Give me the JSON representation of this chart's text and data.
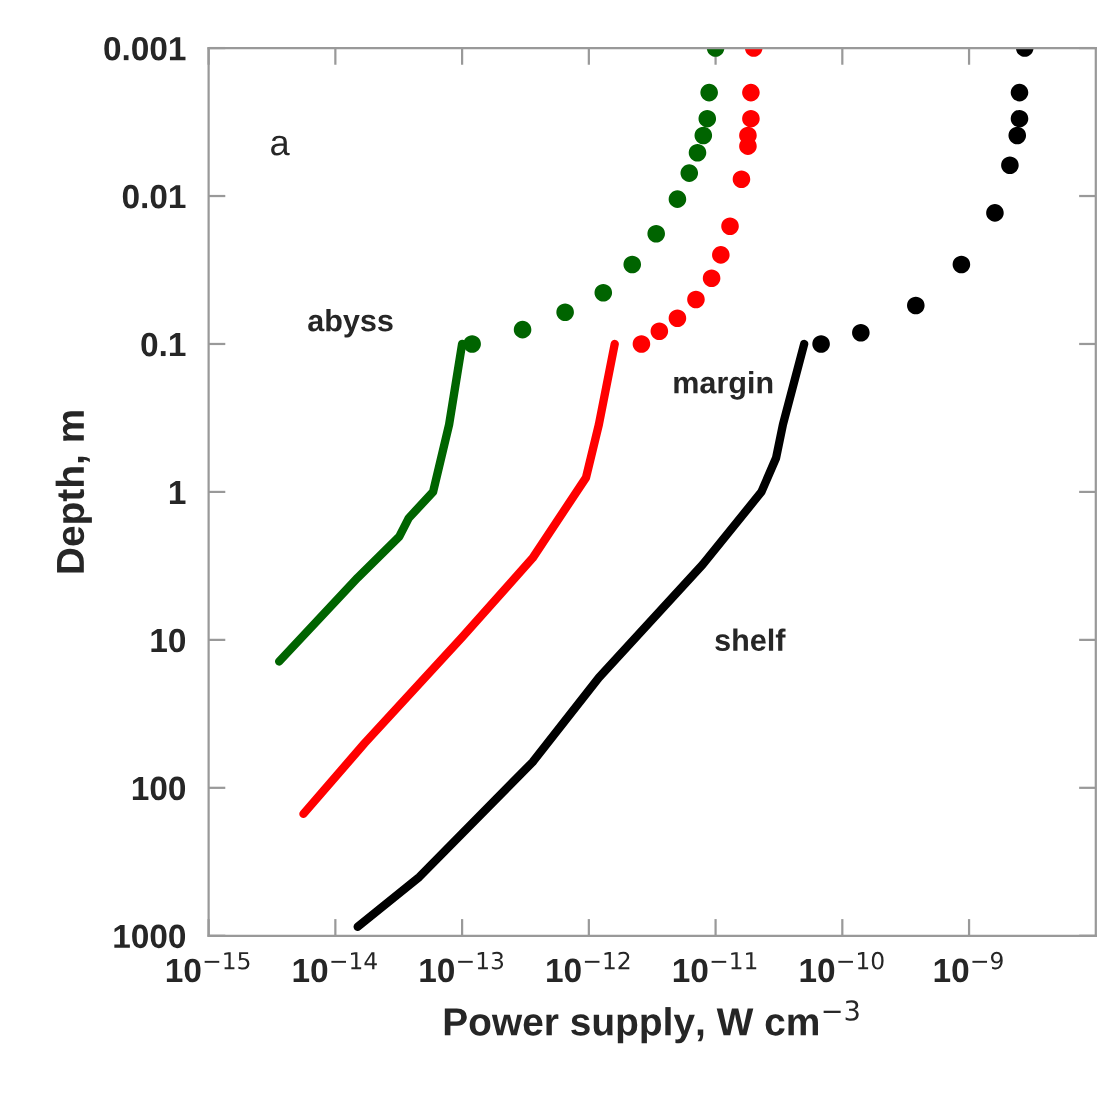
{
  "chart_data": {
    "type": "line",
    "xlabel": "Power supply, W cm$^{−3}$",
    "ylabel": "Depth, m",
    "log": "xy",
    "xlim": [
      1e-15,
      1e-08
    ],
    "ylim": [
      1000,
      0.001
    ],
    "xticks": [
      {
        "value": 1e-15,
        "label": "10$^{−15}$"
      },
      {
        "value": 1e-14,
        "label": "10$^{−14}$"
      },
      {
        "value": 1e-13,
        "label": "10$^{−13}$"
      },
      {
        "value": 1e-12,
        "label": "10$^{−12}$"
      },
      {
        "value": 1e-11,
        "label": "10$^{−11}$"
      },
      {
        "value": 1e-10,
        "label": "10$^{−10}$"
      },
      {
        "value": 1e-09,
        "label": "10$^{−9}$"
      }
    ],
    "yticks": [
      0.001,
      0.01,
      0.1,
      1,
      10,
      100,
      1000
    ],
    "grid": false,
    "line_style": "solid",
    "series": [
      {
        "color": "#006400",
        "x": [
          1e-13,
          7.9e-14,
          5.9e-14,
          3.8e-14,
          3.2e-14,
          1.5e-14,
          3.6e-15
        ],
        "values": [
          0.1,
          0.35,
          1.0,
          1.5,
          2.0,
          3.8,
          14
        ]
      },
      {
        "type": "scatter",
        "marker": "circle",
        "color": "#006400",
        "x": [
          1.2e-13,
          3e-13,
          6.5e-13,
          1.3e-12,
          2.2e-12,
          3.4e-12,
          5e-12,
          6.2e-12,
          7.2e-12,
          8e-12,
          8.6e-12,
          8.9e-12,
          1e-11
        ],
        "values": [
          0.1,
          0.08,
          0.061,
          0.045,
          0.029,
          0.018,
          0.0105,
          0.007,
          0.0051,
          0.0039,
          0.003,
          0.002,
          0.001
        ]
      },
      {
        "color": "#ff0000",
        "x": [
          1.6e-12,
          1.2e-12,
          9.5e-13,
          3.6e-13,
          1e-13,
          1.7e-14,
          5.6e-15
        ],
        "values": [
          0.1,
          0.35,
          0.8,
          2.8,
          9.6,
          50,
          150
        ]
      },
      {
        "type": "scatter",
        "marker": "circle",
        "color": "#ff0000",
        "x": [
          2.6e-12,
          3.6e-12,
          5e-12,
          7e-12,
          9.3e-12,
          1.1e-11,
          1.3e-11,
          1.6e-11,
          1.8e-11,
          1.8e-11,
          1.9e-11,
          1.9e-11,
          2e-11
        ],
        "values": [
          0.1,
          0.082,
          0.067,
          0.05,
          0.036,
          0.025,
          0.016,
          0.0077,
          0.0046,
          0.0039,
          0.003,
          0.002,
          0.001
        ]
      },
      {
        "color": "#000000",
        "x": [
          5e-11,
          3.4e-11,
          3e-11,
          2.3e-11,
          7.9e-12,
          1.2e-12,
          3.6e-13,
          4.6e-14,
          1.5e-14
        ],
        "values": [
          0.1,
          0.35,
          0.59,
          1.0,
          3.1,
          18,
          67,
          400,
          870
        ]
      },
      {
        "type": "scatter",
        "marker": "circle",
        "color": "#000000",
        "x": [
          6.8e-11,
          1.4e-10,
          3.8e-10,
          8.7e-10,
          1.6e-09,
          2.1e-09,
          2.4e-09,
          2.5e-09,
          2.5e-09,
          2.75e-09
        ],
        "values": [
          0.1,
          0.084,
          0.055,
          0.029,
          0.013,
          0.0062,
          0.0039,
          0.003,
          0.002,
          0.001
        ]
      }
    ],
    "annotations": [
      "a",
      "abyss",
      "margin",
      "shelf"
    ]
  }
}
